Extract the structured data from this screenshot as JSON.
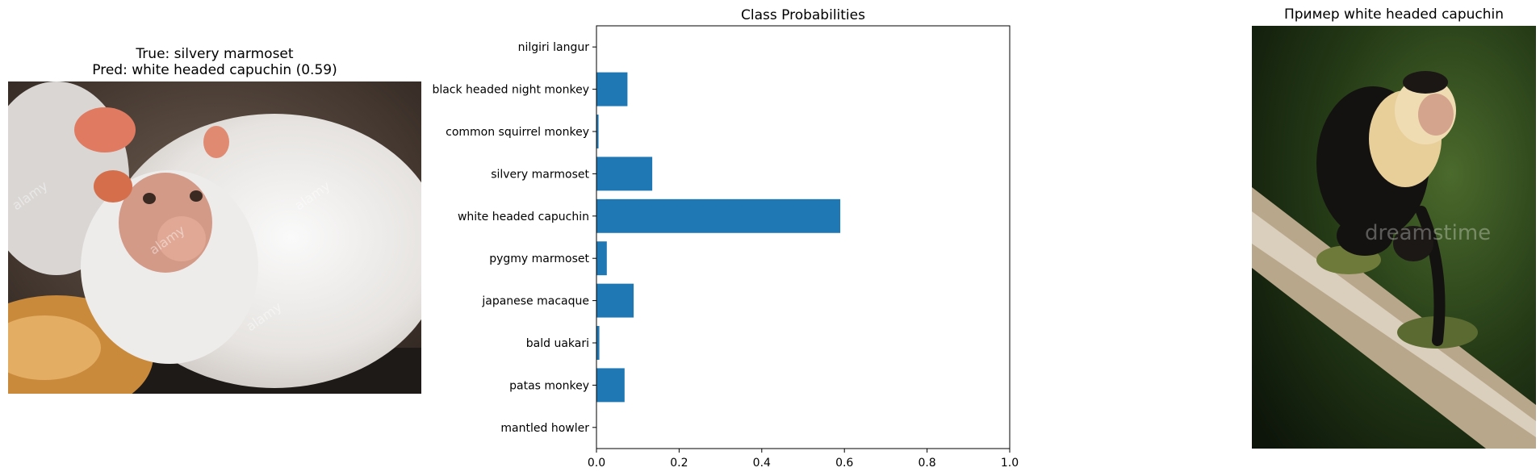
{
  "left_panel": {
    "title_line1": "True: silvery marmoset",
    "title_line2": "Pred: white headed capuchin (0.59)",
    "image_name": "silvery-marmoset-photo",
    "watermark": "alamy"
  },
  "right_panel": {
    "title": "Пример white headed capuchin",
    "image_name": "white-headed-capuchin-photo",
    "watermark": "dreamstime"
  },
  "chart_data": {
    "type": "bar",
    "orientation": "horizontal",
    "title": "Class Probabilities",
    "xlabel": "",
    "ylabel": "",
    "categories": [
      "nilgiri langur",
      "black headed night monkey",
      "common squirrel monkey",
      "silvery marmoset",
      "white headed capuchin",
      "pygmy marmoset",
      "japanese macaque",
      "bald uakari",
      "patas monkey",
      "mantled howler"
    ],
    "values": [
      0.001,
      0.075,
      0.005,
      0.135,
      0.59,
      0.025,
      0.09,
      0.007,
      0.068,
      0.001
    ],
    "xlim": [
      0,
      1.0
    ],
    "xticks": [
      "0.0",
      "0.2",
      "0.4",
      "0.6",
      "0.8",
      "1.0"
    ],
    "grid": false,
    "bar_color": "#1f77b4"
  }
}
